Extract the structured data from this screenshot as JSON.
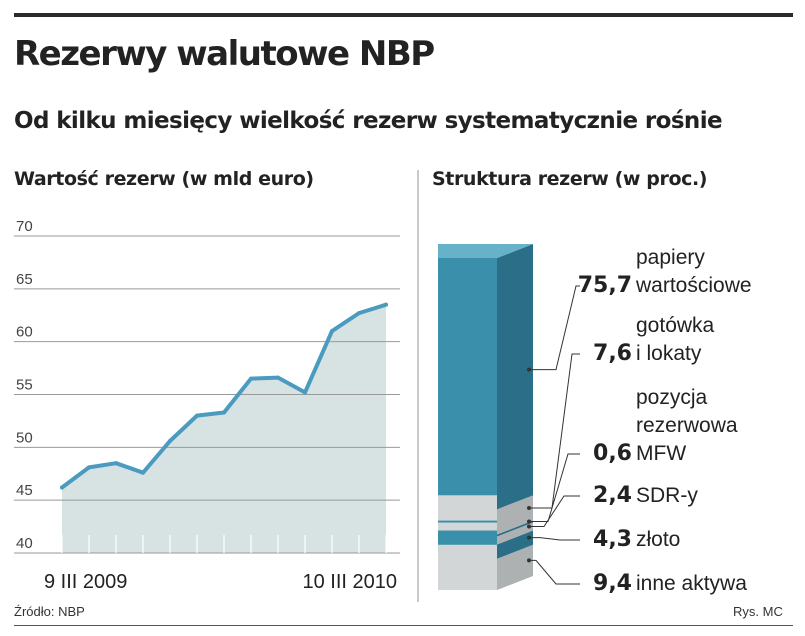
{
  "title": "Rezerwy walutowe NBP",
  "subtitle": "Od kilku miesięcy wielkość rezerw systematycznie rośnie",
  "source": "Źródło: NBP",
  "credit": "Rys. MC",
  "chart_data": [
    {
      "type": "area",
      "title": "Wartość rezerw (w mld euro)",
      "yticks": [
        "40",
        "45",
        "50",
        "55",
        "60",
        "65",
        "70"
      ],
      "ylim": [
        40,
        70
      ],
      "x_start_label": "9 III 2009",
      "x_end_label": "10 III 2010",
      "grid": true,
      "colors": {
        "line": "#4a9bbf",
        "fill": "#d6e3e2",
        "grid": "#999999"
      },
      "series": [
        {
          "values": [
            46.2,
            48.1,
            48.5,
            47.6,
            50.6,
            53.0,
            53.3,
            56.5,
            56.6,
            55.2,
            61.0,
            62.7,
            63.5
          ]
        }
      ]
    },
    {
      "type": "bar",
      "title": "Struktura rezerw (w proc.)",
      "stacked": true,
      "colors": {
        "teal_front": "#3a8faa",
        "teal_side": "#2a6f87",
        "teal_top": "#66b2c8",
        "grey_front": "#d3d6d6",
        "grey_side": "#adb1b1"
      },
      "segments": [
        {
          "value": 9.4,
          "value_label": "9,4",
          "name": "inne aktywa",
          "color": "grey"
        },
        {
          "value": 4.3,
          "value_label": "4,3",
          "name": "złoto",
          "color": "teal"
        },
        {
          "value": 2.4,
          "value_label": "2,4",
          "name": "SDR-y",
          "color": "grey"
        },
        {
          "value": 0.6,
          "value_label": "0,6",
          "name": "pozycja rezerwowa MFW",
          "color": "teal"
        },
        {
          "value": 7.6,
          "value_label": "7,6",
          "name": "gotówka i lokaty",
          "color": "grey"
        },
        {
          "value": 75.7,
          "value_label": "75,7",
          "name": "papiery wartościowe",
          "color": "teal"
        }
      ]
    }
  ]
}
